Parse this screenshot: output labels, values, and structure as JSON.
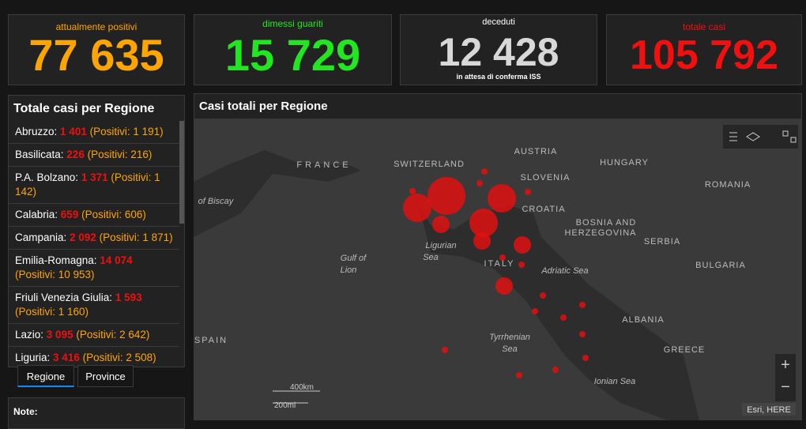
{
  "kpis": [
    {
      "label": "attualmente positivi",
      "value": "77 635"
    },
    {
      "label": "dimessi guariti",
      "value": "15 729"
    },
    {
      "label": "deceduti",
      "value": "12 428",
      "note": "in attesa di conferma ISS"
    },
    {
      "label": "totale casi",
      "value": "105 792"
    }
  ],
  "region_list": {
    "title": "Totale casi per Regione",
    "items": [
      {
        "name": "Abruzzo:",
        "total": "1 401",
        "positives": "(Positivi: 1 191)"
      },
      {
        "name": "Basilicata:",
        "total": "226",
        "positives": "(Positivi: 216)"
      },
      {
        "name": "P.A. Bolzano:",
        "total": "1 371",
        "positives": "(Positivi: 1 142)"
      },
      {
        "name": "Calabria:",
        "total": "659",
        "positives": "(Positivi: 606)"
      },
      {
        "name": "Campania:",
        "total": "2 092",
        "positives": "(Positivi: 1 871)"
      },
      {
        "name": "Emilia-Romagna:",
        "total": "14 074",
        "positives": "(Positivi: 10 953)"
      },
      {
        "name": "Friuli Venezia Giulia:",
        "total": "1 593",
        "positives": "(Positivi: 1 160)"
      },
      {
        "name": "Lazio:",
        "total": "3 095",
        "positives": "(Positivi: 2 642)"
      },
      {
        "name": "Liguria:",
        "total": "3 416",
        "positives": "(Positivi: 2 508)"
      }
    ]
  },
  "tabs": [
    "Regione",
    "Province"
  ],
  "note": "Note:",
  "map": {
    "title": "Casi totali per Regione",
    "labels": [
      "FRANCE",
      "SWITZERLAND",
      "AUSTRIA",
      "SLOVENIA",
      "HUNGARY",
      "ROMANIA",
      "CROATIA",
      "BOSNIA AND",
      "HERZEGOVINA",
      "SERBIA",
      "BULGARIA",
      "ITALY",
      "ALBANIA",
      "SPAIN",
      "GREECE"
    ],
    "seas": [
      "of Biscay",
      "Gulf of",
      "Lion",
      "Ligurian",
      "Sea",
      "Adriatic Sea",
      "Tyrrhenian",
      "Sea",
      "Ionian Sea"
    ],
    "scale": [
      "400km",
      "200mi"
    ],
    "attribution": "Esri, HERE"
  }
}
